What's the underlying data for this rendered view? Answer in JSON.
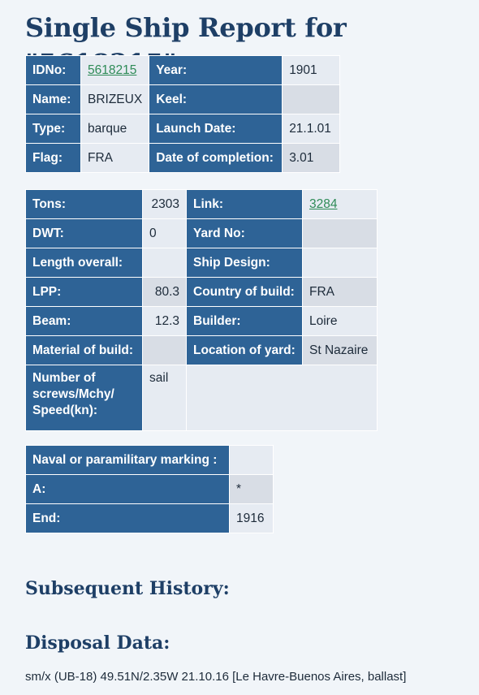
{
  "page_title": "Single Ship Report for \"5618215\"",
  "table1": {
    "rows": [
      {
        "l1": "IDNo:",
        "v1": "5618215",
        "l2": "Year:",
        "v2": "1901"
      },
      {
        "l1": "Name:",
        "v1": "BRIZEUX",
        "l2": "Keel:",
        "v2": ""
      },
      {
        "l1": "Type:",
        "v1": "barque",
        "l2": "Launch Date:",
        "v2": "21.1.01"
      },
      {
        "l1": "Flag:",
        "v1": "FRA",
        "l2": "Date of completion:",
        "v2": "3.01"
      }
    ]
  },
  "table2": {
    "rows": [
      {
        "l1": "Tons:",
        "v1": "2303",
        "l2": "Link:",
        "v2": "3284"
      },
      {
        "l1": "DWT:",
        "v1": "0",
        "l2": "Yard No:",
        "v2": ""
      },
      {
        "l1": "Length overall:",
        "v1": "",
        "l2": "Ship Design:",
        "v2": ""
      },
      {
        "l1": "LPP:",
        "v1": "80.3",
        "l2": "Country of build:",
        "v2": "FRA"
      },
      {
        "l1": "Beam:",
        "v1": "12.3",
        "l2": "Builder:",
        "v2": "Loire"
      },
      {
        "l1": "Material of build:",
        "v1": "",
        "l2": "Location of yard:",
        "v2": "St Nazaire"
      }
    ],
    "screws_label": "Number of screws/Mchy/ Speed(kn):",
    "screws_value": "sail"
  },
  "table3": {
    "rows": [
      {
        "l": "Naval or paramilitary marking :",
        "v": ""
      },
      {
        "l": "A:",
        "v": "*"
      },
      {
        "l": "End:",
        "v": "1916"
      }
    ]
  },
  "subsequent_history_heading": "Subsequent History:",
  "disposal_heading": "Disposal Data:",
  "disposal_text": "sm/x (UB-18) 49.51N/2.35W 21.10.16 [Le Havre-Buenos Aires, ballast]"
}
